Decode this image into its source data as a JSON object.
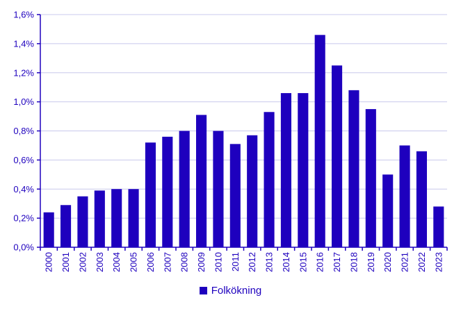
{
  "colors": {
    "bar": "#1e00be",
    "axis": "#1e00be",
    "text": "#1e00be",
    "grid": "#c8c8ec"
  },
  "chart_data": {
    "type": "bar",
    "categories": [
      "2000",
      "2001",
      "2002",
      "2003",
      "2004",
      "2005",
      "2006",
      "2007",
      "2008",
      "2009",
      "2010",
      "2011",
      "2012",
      "2013",
      "2014",
      "2015",
      "2016",
      "2017",
      "2018",
      "2019",
      "2020",
      "2021",
      "2022",
      "2023"
    ],
    "series": [
      {
        "name": "Folkökning",
        "values": [
          0.24,
          0.29,
          0.35,
          0.39,
          0.4,
          0.4,
          0.72,
          0.76,
          0.8,
          0.91,
          0.8,
          0.71,
          0.77,
          0.93,
          1.06,
          1.06,
          1.46,
          1.25,
          1.08,
          0.95,
          0.5,
          0.7,
          0.66,
          0.28
        ]
      }
    ],
    "ylim": [
      0,
      1.6
    ],
    "yticks": [
      0,
      0.2,
      0.4,
      0.6,
      0.8,
      1.0,
      1.2,
      1.4,
      1.6
    ],
    "ytick_labels": [
      "0,0%",
      "0,2%",
      "0,4%",
      "0,6%",
      "0,8%",
      "1,0%",
      "1,2%",
      "1,4%",
      "1,6%"
    ],
    "grid": true,
    "legend_position": "bottom-center",
    "title": "",
    "xlabel": "",
    "ylabel": ""
  }
}
